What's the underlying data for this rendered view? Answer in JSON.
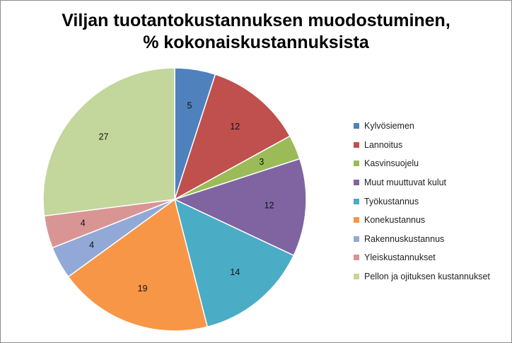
{
  "chart_data": {
    "type": "pie",
    "title_line1": "Viljan tuotantokustannuksen muodostuminen,",
    "title_line2": "% kokonaiskustannuksista",
    "categories": [
      "Kylvösiemen",
      "Lannoitus",
      "Kasvinsuojelu",
      "Muut muuttuvat kulut",
      "Työkustannus",
      "Konekustannus",
      "Rakennuskustannus",
      "Yleiskustannukset",
      "Pellon ja ojituksen kustannukset"
    ],
    "values": [
      5,
      12,
      3,
      12,
      14,
      19,
      4,
      4,
      27
    ],
    "colors": [
      "#4f81bd",
      "#c0504d",
      "#9bbb59",
      "#8064a2",
      "#4bacc6",
      "#f79646",
      "#92a9d7",
      "#d99594",
      "#c3d69b"
    ],
    "legend_position": "right",
    "start_angle": "top, clockwise"
  }
}
